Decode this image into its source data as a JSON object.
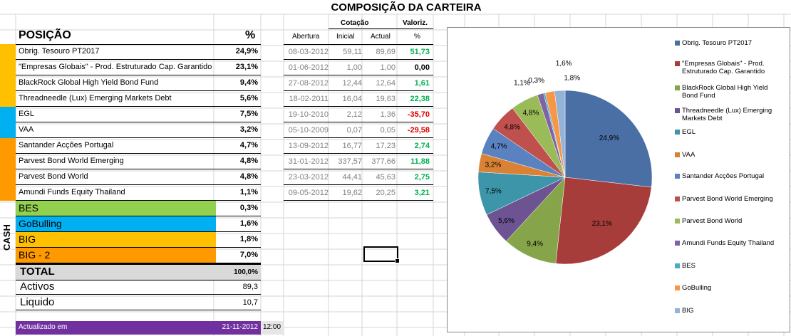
{
  "title": "COMPOSIÇÃO DA CARTEIRA",
  "headers": {
    "posicao": "POSIÇÃO",
    "pct": "%",
    "cotacao": "Cotação",
    "valoriz": "Valoriz.",
    "abertura": "Abertura",
    "inicial": "Inicial",
    "actual": "Actual",
    "valoriz_pct": "%"
  },
  "positions": [
    {
      "name": "Obrig. Tesouro PT2017",
      "pct": "24,9%",
      "abertura": "08-03-2012",
      "inicial": "59,11",
      "actual": "89,69",
      "valoriz": "51,73",
      "sign": "pos"
    },
    {
      "name": "\"Empresas Globais\" - Prod. Estruturado Cap. Garantido",
      "pct": "23,1%",
      "abertura": "01-06-2012",
      "inicial": "1,00",
      "actual": "1,00",
      "valoriz": "0,00",
      "sign": "zero"
    },
    {
      "name": "BlackRock Global High Yield Bond Fund",
      "pct": "9,4%",
      "abertura": "27-08-2012",
      "inicial": "12,44",
      "actual": "12,64",
      "valoriz": "1,61",
      "sign": "pos"
    },
    {
      "name": "Threadneedle (Lux) Emerging Markets Debt",
      "pct": "5,6%",
      "abertura": "18-02-2011",
      "inicial": "16,04",
      "actual": "19,63",
      "valoriz": "22,38",
      "sign": "pos"
    },
    {
      "name": "EGL",
      "pct": "7,5%",
      "abertura": "19-10-2010",
      "inicial": "2,12",
      "actual": "1,36",
      "valoriz": "-35,70",
      "sign": "neg"
    },
    {
      "name": "VAA",
      "pct": "3,2%",
      "abertura": "05-10-2009",
      "inicial": "0,07",
      "actual": "0,05",
      "valoriz": "-29,58",
      "sign": "neg"
    },
    {
      "name": "Santander Acções Portugal",
      "pct": "4,7%",
      "abertura": "13-09-2012",
      "inicial": "16,77",
      "actual": "17,23",
      "valoriz": "2,74",
      "sign": "pos"
    },
    {
      "name": "Parvest Bond World Emerging",
      "pct": "4,8%",
      "abertura": "31-01-2012",
      "inicial": "337,57",
      "actual": "377,66",
      "valoriz": "11,88",
      "sign": "pos"
    },
    {
      "name": "Parvest Bond World",
      "pct": "4,8%",
      "abertura": "23-03-2012",
      "inicial": "44,41",
      "actual": "45,63",
      "valoriz": "2,75",
      "sign": "pos"
    },
    {
      "name": "Amundi Funds Equity Thailand",
      "pct": "1,1%",
      "abertura": "09-05-2012",
      "inicial": "19,62",
      "actual": "20,25",
      "valoriz": "3,21",
      "sign": "pos"
    }
  ],
  "group_colors": [
    "#ffc000",
    "#00b0f0",
    "#ff9900"
  ],
  "cash": {
    "label": "CASH",
    "rows": [
      {
        "name": "BES",
        "pct": "0,3%",
        "color": "#92d050"
      },
      {
        "name": "GoBulling",
        "pct": "1,6%",
        "color": "#00b0f0"
      },
      {
        "name": "BIG",
        "pct": "1,8%",
        "color": "#ffc000"
      },
      {
        "name": "BIG - 2",
        "pct": "7,0%",
        "color": "#ff9900"
      }
    ]
  },
  "total": {
    "label": "TOTAL",
    "value": "100,0%"
  },
  "activos": {
    "label": "Activos",
    "value": "89,3"
  },
  "liquido": {
    "label": "Liquido",
    "value": "10,7"
  },
  "footer": {
    "label": "Actualizado em",
    "date": "21-11-2012",
    "time": "12:00",
    "color": "#7030a0"
  },
  "chart_data": {
    "type": "pie",
    "categories": [
      "Obrig. Tesouro PT2017",
      "\"Empresas Globais\" - Prod. Estruturado Cap. Garantido",
      "BlackRock Global High Yield Bond Fund",
      "Threadneedle (Lux) Emerging Markets Debt",
      "EGL",
      "VAA",
      "Santander Acções Portugal",
      "Parvest Bond World Emerging",
      "Parvest Bond World",
      "Amundi Funds Equity Thailand",
      "BES",
      "GoBulling",
      "BIG"
    ],
    "values": [
      24.9,
      23.1,
      9.4,
      5.6,
      7.5,
      3.2,
      4.7,
      4.8,
      4.8,
      1.1,
      0.3,
      1.6,
      1.8
    ],
    "labels": [
      "24,9%",
      "23,1%",
      "9,4%",
      "5,6%",
      "7,5%",
      "3,2%",
      "4,7%",
      "4,8%",
      "4,8%",
      "1,1%",
      "0,3%",
      "1,6%",
      "1,8%"
    ],
    "colors": [
      "#4a6fa5",
      "#a63d3a",
      "#86a44a",
      "#6d5392",
      "#3d95a9",
      "#d98235",
      "#5b82c0",
      "#c0504d",
      "#9bbb59",
      "#8064a2",
      "#4bacc6",
      "#f79646",
      "#95b3d7"
    ],
    "legend": "right"
  }
}
